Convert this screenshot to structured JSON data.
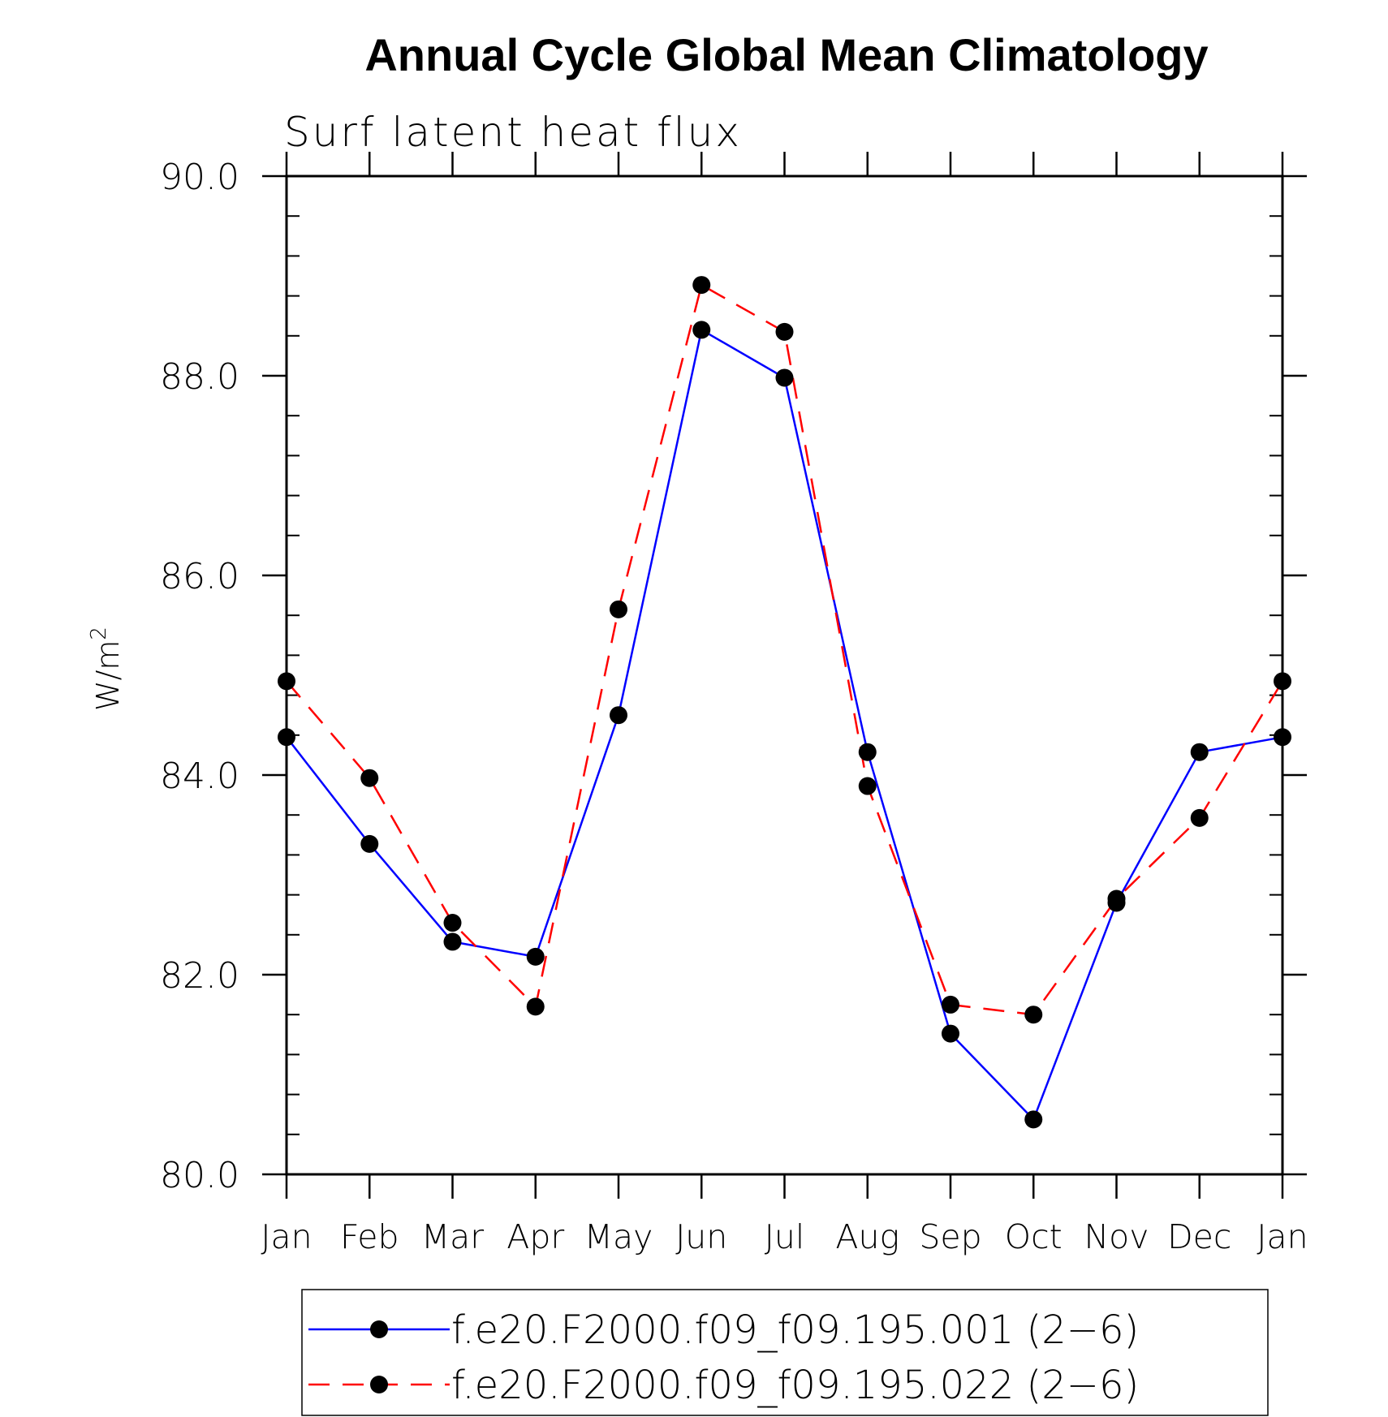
{
  "chart_data": {
    "type": "line",
    "title": "Annual Cycle Global Mean Climatology",
    "subtitle": "Surf latent heat flux",
    "ylabel": "W/m",
    "ylabel_superscript": "2",
    "ylim": [
      80.0,
      90.0
    ],
    "yticks": [
      "80.0",
      "82.0",
      "84.0",
      "86.0",
      "88.0",
      "90.0"
    ],
    "categories": [
      "Jan",
      "Feb",
      "Mar",
      "Apr",
      "May",
      "Jun",
      "Jul",
      "Aug",
      "Sep",
      "Oct",
      "Nov",
      "Dec",
      "Jan"
    ],
    "grid": false,
    "legend_position": "bottom",
    "series": [
      {
        "name": "f.e20.F2000.f09_f09.195.001 (2−6)",
        "color": "#0000ff",
        "dash": "solid",
        "marker": "filled-circle",
        "values": [
          84.38,
          83.31,
          82.33,
          82.18,
          84.6,
          88.46,
          87.98,
          84.23,
          81.41,
          80.55,
          82.72,
          84.23,
          84.38
        ]
      },
      {
        "name": "f.e20.F2000.f09_f09.195.022 (2−6)",
        "color": "#ff0000",
        "dash": "dashed",
        "marker": "filled-circle",
        "values": [
          84.94,
          83.97,
          82.52,
          81.68,
          85.66,
          88.91,
          88.44,
          83.89,
          81.7,
          81.6,
          82.76,
          83.57,
          84.94
        ]
      }
    ]
  }
}
